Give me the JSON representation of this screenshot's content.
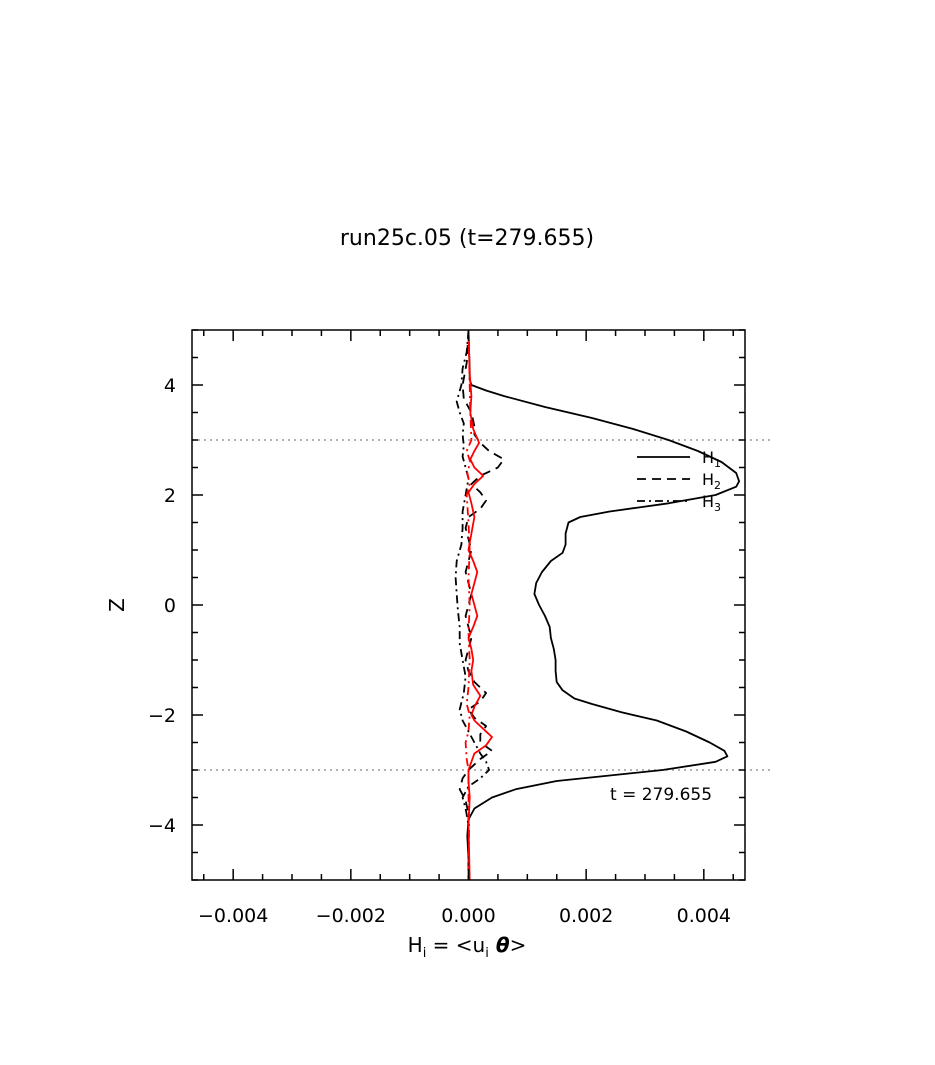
{
  "chart_data": {
    "type": "line",
    "title": "run25c.05 (t=279.655)",
    "xlabel": "H",
    "xlabel_sub": "i",
    "xlabel_eq": " = <u",
    "xlabel_eq_sub": "i",
    "xlabel_theta": " θ",
    "xlabel_close": ">",
    "ylabel": "Z",
    "xlim": [
      -0.0047,
      0.0047
    ],
    "ylim": [
      -5,
      5
    ],
    "x_ticks": [
      -0.004,
      -0.002,
      0.0,
      0.002,
      0.004
    ],
    "x_tick_labels": [
      "−0.004",
      "−0.002",
      "0.000",
      "0.002",
      "0.004"
    ],
    "y_ticks": [
      -4,
      -2,
      0,
      2,
      4
    ],
    "y_tick_labels": [
      "−4",
      "−2",
      "0",
      "2",
      "4"
    ],
    "reference_lines_z": [
      3,
      -3
    ],
    "annotation": "t = 279.655",
    "legend": {
      "placement": "right-center",
      "entries": [
        {
          "label": "H",
          "sub": "1",
          "style": "solid"
        },
        {
          "label": "H",
          "sub": "2",
          "style": "dashed"
        },
        {
          "label": "H",
          "sub": "3",
          "style": "dashdot"
        }
      ]
    },
    "colors": {
      "black": "#000000",
      "red": "#ff0000",
      "ref": "#999999"
    },
    "series": [
      {
        "color": "#000000",
        "style": "solid",
        "z_x": [
          [
            5,
            0.0
          ],
          [
            4.6,
            1e-05
          ],
          [
            4.3,
            2e-05
          ],
          [
            4.1,
            2e-05
          ],
          [
            4.0,
            5e-05
          ],
          [
            3.9,
            0.0003
          ],
          [
            3.8,
            0.0006
          ],
          [
            3.6,
            0.0013
          ],
          [
            3.4,
            0.0021
          ],
          [
            3.2,
            0.0028
          ],
          [
            3.0,
            0.0034
          ],
          [
            2.8,
            0.0039
          ],
          [
            2.6,
            0.0043
          ],
          [
            2.4,
            0.00455
          ],
          [
            2.25,
            0.0046
          ],
          [
            2.15,
            0.00455
          ],
          [
            2.0,
            0.0042
          ],
          [
            1.85,
            0.0034
          ],
          [
            1.7,
            0.0024
          ],
          [
            1.6,
            0.0019
          ],
          [
            1.5,
            0.0017
          ],
          [
            1.3,
            0.00165
          ],
          [
            1.1,
            0.00165
          ],
          [
            0.95,
            0.0016
          ],
          [
            0.8,
            0.0014
          ],
          [
            0.6,
            0.00125
          ],
          [
            0.4,
            0.00115
          ],
          [
            0.2,
            0.00112
          ],
          [
            0.0,
            0.0012
          ],
          [
            -0.2,
            0.0013
          ],
          [
            -0.4,
            0.00138
          ],
          [
            -0.6,
            0.0014
          ],
          [
            -0.8,
            0.00145
          ],
          [
            -1.0,
            0.00148
          ],
          [
            -1.2,
            0.00148
          ],
          [
            -1.4,
            0.0015
          ],
          [
            -1.55,
            0.0016
          ],
          [
            -1.7,
            0.0018
          ],
          [
            -1.8,
            0.0021
          ],
          [
            -1.95,
            0.0026
          ],
          [
            -2.1,
            0.0032
          ],
          [
            -2.3,
            0.0037
          ],
          [
            -2.5,
            0.0041
          ],
          [
            -2.65,
            0.00435
          ],
          [
            -2.75,
            0.0044
          ],
          [
            -2.85,
            0.0042
          ],
          [
            -3.0,
            0.0033
          ],
          [
            -3.1,
            0.0024
          ],
          [
            -3.2,
            0.0015
          ],
          [
            -3.35,
            0.0008
          ],
          [
            -3.5,
            0.0004
          ],
          [
            -3.7,
            0.0001
          ],
          [
            -3.9,
            0.0
          ],
          [
            -4.2,
            -2e-05
          ],
          [
            -4.6,
            0.0
          ],
          [
            -5,
            2e-05
          ]
        ]
      },
      {
        "color": "#000000",
        "style": "dashed",
        "z_x": [
          [
            5,
            0.0
          ],
          [
            4.4,
            -3e-05
          ],
          [
            4.0,
            -0.0001
          ],
          [
            3.75,
            -8e-05
          ],
          [
            3.5,
            5e-05
          ],
          [
            3.25,
            0.0001
          ],
          [
            3.1,
            0.0001
          ],
          [
            2.95,
            0.0002
          ],
          [
            2.8,
            0.00035
          ],
          [
            2.65,
            0.0006
          ],
          [
            2.5,
            0.0005
          ],
          [
            2.35,
            0.0002
          ],
          [
            2.2,
            5e-05
          ],
          [
            2.05,
            0.0002
          ],
          [
            1.9,
            0.0003
          ],
          [
            1.75,
            0.0002
          ],
          [
            1.6,
            0.0
          ],
          [
            1.4,
            -5e-05
          ],
          [
            1.2,
            0.0
          ],
          [
            1.0,
            5e-05
          ],
          [
            0.8,
            0.0
          ],
          [
            0.6,
            -5e-05
          ],
          [
            0.4,
            0.0
          ],
          [
            0.2,
            5e-05
          ],
          [
            0.0,
            0.0
          ],
          [
            -0.2,
            -5e-05
          ],
          [
            -0.4,
            0.0
          ],
          [
            -0.6,
            5e-05
          ],
          [
            -0.8,
            0.0
          ],
          [
            -1.0,
            -5e-05
          ],
          [
            -1.2,
            0.0
          ],
          [
            -1.4,
            0.0001
          ],
          [
            -1.6,
            0.0003
          ],
          [
            -1.75,
            0.0002
          ],
          [
            -1.9,
            0.0
          ],
          [
            -2.05,
            0.0001
          ],
          [
            -2.2,
            0.0003
          ],
          [
            -2.35,
            0.0002
          ],
          [
            -2.5,
            0.0002
          ],
          [
            -2.65,
            0.0004
          ],
          [
            -2.8,
            0.0002
          ],
          [
            -3.0,
            0.0
          ],
          [
            -3.15,
            -0.0001
          ],
          [
            -3.35,
            -0.00015
          ],
          [
            -3.55,
            -5e-05
          ],
          [
            -3.8,
            0.0
          ],
          [
            -4.2,
            0.0
          ],
          [
            -5,
            0.0
          ]
        ]
      },
      {
        "color": "#000000",
        "style": "dashdot",
        "z_x": [
          [
            5,
            0.0
          ],
          [
            4.6,
            -3e-05
          ],
          [
            4.3,
            -0.0001
          ],
          [
            4.0,
            -0.00012
          ],
          [
            3.7,
            -0.0002
          ],
          [
            3.5,
            -0.00015
          ],
          [
            3.3,
            -8e-05
          ],
          [
            3.1,
            -0.0001
          ],
          [
            2.9,
            -8e-05
          ],
          [
            2.7,
            -0.0001
          ],
          [
            2.5,
            -5e-05
          ],
          [
            2.3,
            0.0
          ],
          [
            2.0,
            -5e-05
          ],
          [
            1.7,
            -0.0001
          ],
          [
            1.4,
            -0.0001
          ],
          [
            1.1,
            -0.00012
          ],
          [
            0.8,
            -0.0002
          ],
          [
            0.5,
            -0.00022
          ],
          [
            0.2,
            -0.0002
          ],
          [
            -0.1,
            -0.00018
          ],
          [
            -0.4,
            -0.00015
          ],
          [
            -0.7,
            -0.00015
          ],
          [
            -1.0,
            -0.0001
          ],
          [
            -1.3,
            -5e-05
          ],
          [
            -1.6,
            -8e-05
          ],
          [
            -1.9,
            -0.00015
          ],
          [
            -2.1,
            -0.0001
          ],
          [
            -2.3,
            0.0
          ],
          [
            -2.5,
            0.0001
          ],
          [
            -2.7,
            0.0002
          ],
          [
            -2.85,
            0.0003
          ],
          [
            -3.0,
            0.00035
          ],
          [
            -3.15,
            0.0002
          ],
          [
            -3.3,
            0.0
          ],
          [
            -3.5,
            -0.0001
          ],
          [
            -3.7,
            -5e-05
          ],
          [
            -4.0,
            0.0
          ],
          [
            -5,
            0.0
          ]
        ]
      },
      {
        "color": "#ff0000",
        "style": "solid",
        "z_x": [
          [
            5,
            0.0
          ],
          [
            4.2,
            2e-05
          ],
          [
            3.8,
            5e-05
          ],
          [
            3.5,
            3e-05
          ],
          [
            3.2,
            8e-05
          ],
          [
            2.95,
            0.00018
          ],
          [
            2.8,
            0.0001
          ],
          [
            2.65,
            3e-05
          ],
          [
            2.5,
            0.0001
          ],
          [
            2.35,
            0.00025
          ],
          [
            2.2,
            0.0001
          ],
          [
            2.05,
            0.0
          ],
          [
            1.85,
            5e-05
          ],
          [
            1.6,
            0.0001
          ],
          [
            1.3,
            5e-05
          ],
          [
            1.0,
            0.0
          ],
          [
            0.8,
            8e-05
          ],
          [
            0.6,
            0.00015
          ],
          [
            0.4,
            0.0001
          ],
          [
            0.2,
            5e-05
          ],
          [
            0.0,
            0.0001
          ],
          [
            -0.2,
            0.00015
          ],
          [
            -0.4,
            8e-05
          ],
          [
            -0.6,
            0.0
          ],
          [
            -0.8,
            5e-05
          ],
          [
            -1.0,
            8e-05
          ],
          [
            -1.2,
            5e-05
          ],
          [
            -1.45,
            8e-05
          ],
          [
            -1.65,
            0.0002
          ],
          [
            -1.85,
            0.0001
          ],
          [
            -2.0,
            5e-05
          ],
          [
            -2.1,
            0.0001
          ],
          [
            -2.25,
            0.00025
          ],
          [
            -2.4,
            0.0004
          ],
          [
            -2.55,
            0.0003
          ],
          [
            -2.7,
            0.0001
          ],
          [
            -2.85,
            5e-05
          ],
          [
            -3.0,
            0.0
          ],
          [
            -3.2,
            0.0
          ],
          [
            -3.5,
            2e-05
          ],
          [
            -4.0,
            0.0
          ],
          [
            -5,
            2e-05
          ]
        ]
      },
      {
        "color": "#ff0000",
        "style": "dashdot",
        "z_x": [
          [
            5,
            0.0
          ],
          [
            4.0,
            2e-05
          ],
          [
            3.5,
            3e-05
          ],
          [
            3.0,
            5e-05
          ],
          [
            2.8,
            -3e-05
          ],
          [
            2.6,
            3e-05
          ],
          [
            2.4,
            -2e-05
          ],
          [
            2.2,
            2e-05
          ],
          [
            2.0,
            -3e-05
          ],
          [
            1.5,
            0.0
          ],
          [
            1.0,
            2e-05
          ],
          [
            0.5,
            0.0
          ],
          [
            0.0,
            2e-05
          ],
          [
            -0.5,
            0.0
          ],
          [
            -1.0,
            2e-05
          ],
          [
            -1.5,
            0.0
          ],
          [
            -1.8,
            -3e-05
          ],
          [
            -2.0,
            2e-05
          ],
          [
            -2.3,
            0.0
          ],
          [
            -2.5,
            -5e-05
          ],
          [
            -2.8,
            -3e-05
          ],
          [
            -3.0,
            0.0
          ],
          [
            -3.5,
            0.0
          ],
          [
            -4.0,
            1e-05
          ],
          [
            -5,
            0.0
          ]
        ]
      }
    ]
  }
}
